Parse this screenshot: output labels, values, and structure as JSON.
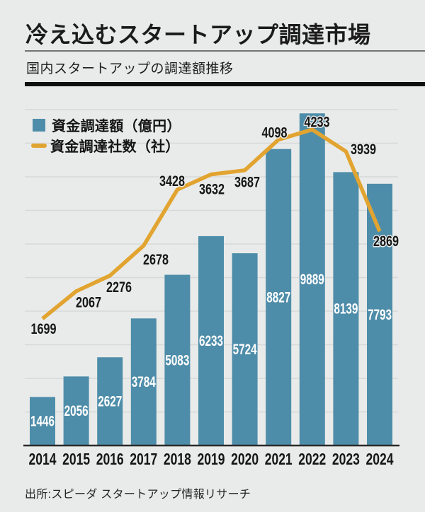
{
  "header": {
    "title": "冷え込むスタートアップ調達市場",
    "subtitle": "国内スタートアップの調達額推移"
  },
  "legend": [
    {
      "label": "資金調達額（億円）",
      "swatch": "square"
    },
    {
      "label": "資金調達社数（社）",
      "swatch": "line"
    }
  ],
  "colors": {
    "background": "#e9ebea",
    "bar": "#4e8da9",
    "line": "#e2a430",
    "grid": "#d6d9d8",
    "axis": "#2b2b2b",
    "bar_label": "#ffffff",
    "text": "#161616"
  },
  "chart_data": {
    "type": "bar",
    "title": "国内スタートアップの調達額推移",
    "categories": [
      "2014",
      "2015",
      "2016",
      "2017",
      "2018",
      "2019",
      "2020",
      "2021",
      "2022",
      "2023",
      "2024"
    ],
    "series": [
      {
        "name": "資金調達額（億円）",
        "type": "bar",
        "values": [
          1446,
          2056,
          2627,
          3784,
          5083,
          6233,
          5724,
          8827,
          9889,
          8139,
          7793
        ],
        "axis_range": [
          0,
          10000
        ]
      },
      {
        "name": "資金調達社数（社）",
        "type": "line",
        "values": [
          1699,
          2067,
          2276,
          2678,
          3428,
          3632,
          3687,
          4098,
          4233,
          3939,
          2869
        ],
        "axis_range": [
          0,
          4500
        ]
      }
    ],
    "grid": true,
    "grid_step": 1000,
    "legend_position": "top-left",
    "xlabel": "",
    "ylabel": ""
  },
  "source": "出所:スピーダ スタートアップ情報リサーチ"
}
